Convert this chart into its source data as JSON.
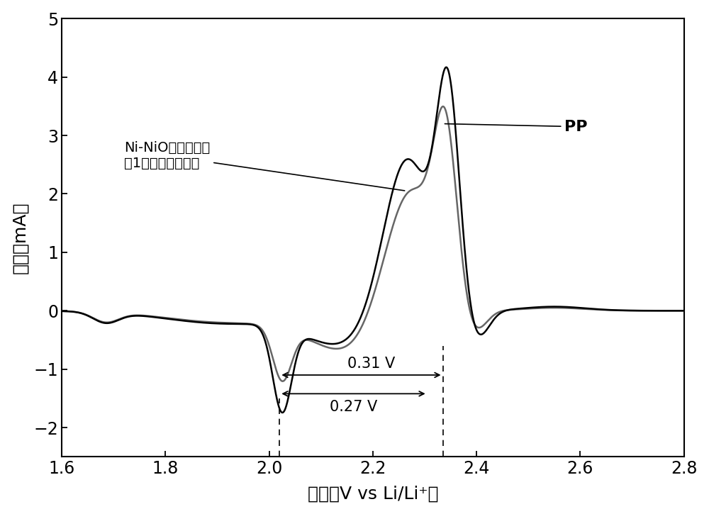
{
  "xlabel": "电压（V vs Li/Li⁺）",
  "ylabel": "电流（mA）",
  "xlim": [
    1.6,
    2.8
  ],
  "ylim": [
    -2.5,
    5.0
  ],
  "xticks": [
    1.6,
    1.8,
    2.0,
    2.2,
    2.4,
    2.6,
    2.8
  ],
  "yticks": [
    -2,
    -1,
    0,
    1,
    2,
    3,
    4,
    5
  ],
  "background_color": "#ffffff",
  "line_color_pp": "#000000",
  "line_color_ni": "#666666",
  "label_pp": "PP",
  "label_ni": "Ni-NiO异质结纳米\n頇1粒掺杂碘纳米维",
  "annotation_031": "0.31 V",
  "annotation_027": "0.27 V",
  "dashed_x1": 2.02,
  "dashed_x2": 2.335
}
